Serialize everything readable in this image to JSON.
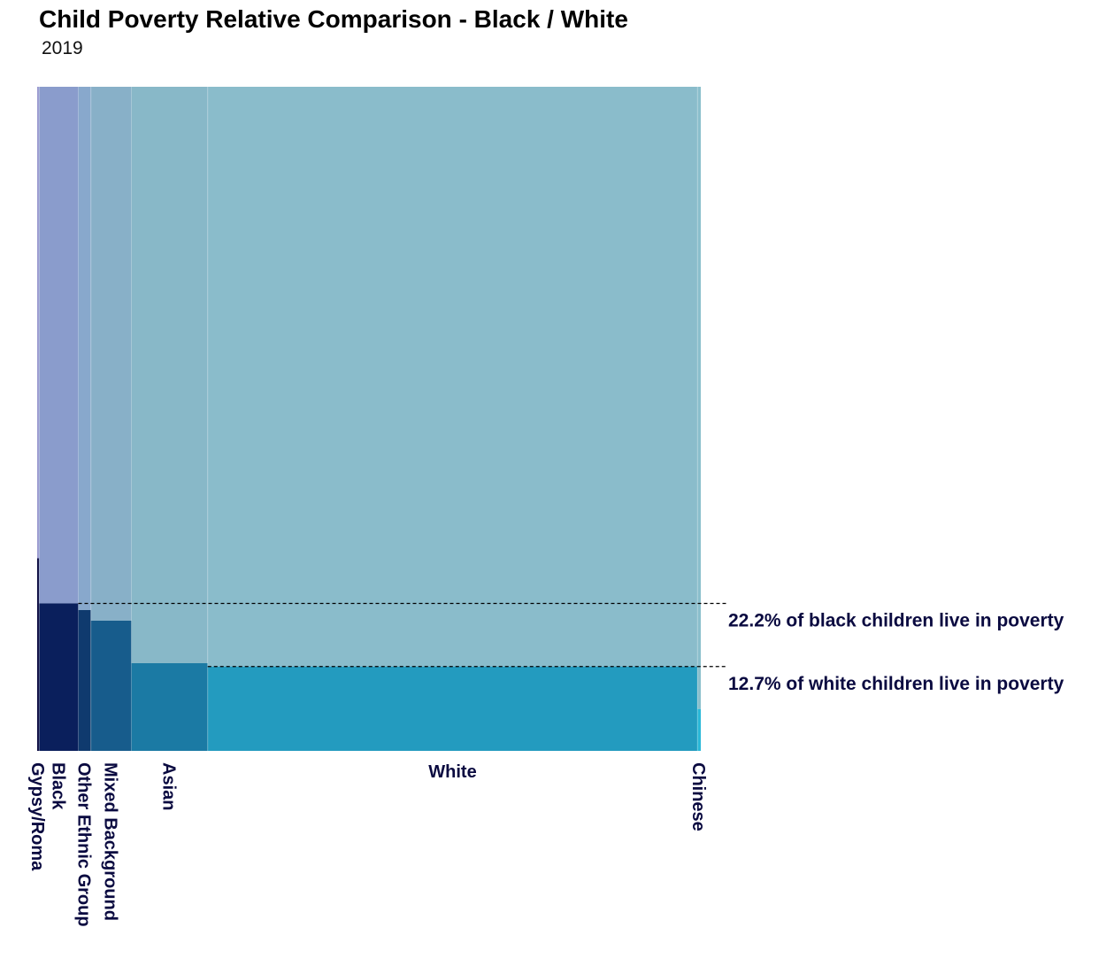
{
  "chart_data": {
    "type": "mosaic",
    "title": "Child Poverty Relative Comparison - Black / White",
    "subtitle": "2019",
    "categories": [
      "Gypsy/Roma",
      "Black",
      "Other Ethnic Group",
      "Mixed Background",
      "Asian",
      "White",
      "Chinese"
    ],
    "population_share_pct": [
      0.3,
      5.9,
      1.9,
      6.1,
      11.5,
      73.8,
      0.5
    ],
    "poverty_rate_pct": [
      29.0,
      22.2,
      21.2,
      19.6,
      13.2,
      12.7,
      6.3
    ],
    "colors_poverty": [
      "#0a0a40",
      "#0a1f5c",
      "#0f3a6e",
      "#175c8c",
      "#1b7aa4",
      "#239bbf",
      "#2ab8d8"
    ],
    "colors_rest": [
      "#9a9ad0",
      "#8a9ccc",
      "#88a8cc",
      "#88b0c8",
      "#88b8c8",
      "#8abccb",
      "#8bbfcc"
    ],
    "annotations": [
      {
        "text": "22.2% of black children live in poverty",
        "value": 22.2
      },
      {
        "text": "12.7% of white children live in poverty",
        "value": 12.7
      }
    ],
    "ylim": [
      0,
      100
    ],
    "grid": false
  }
}
